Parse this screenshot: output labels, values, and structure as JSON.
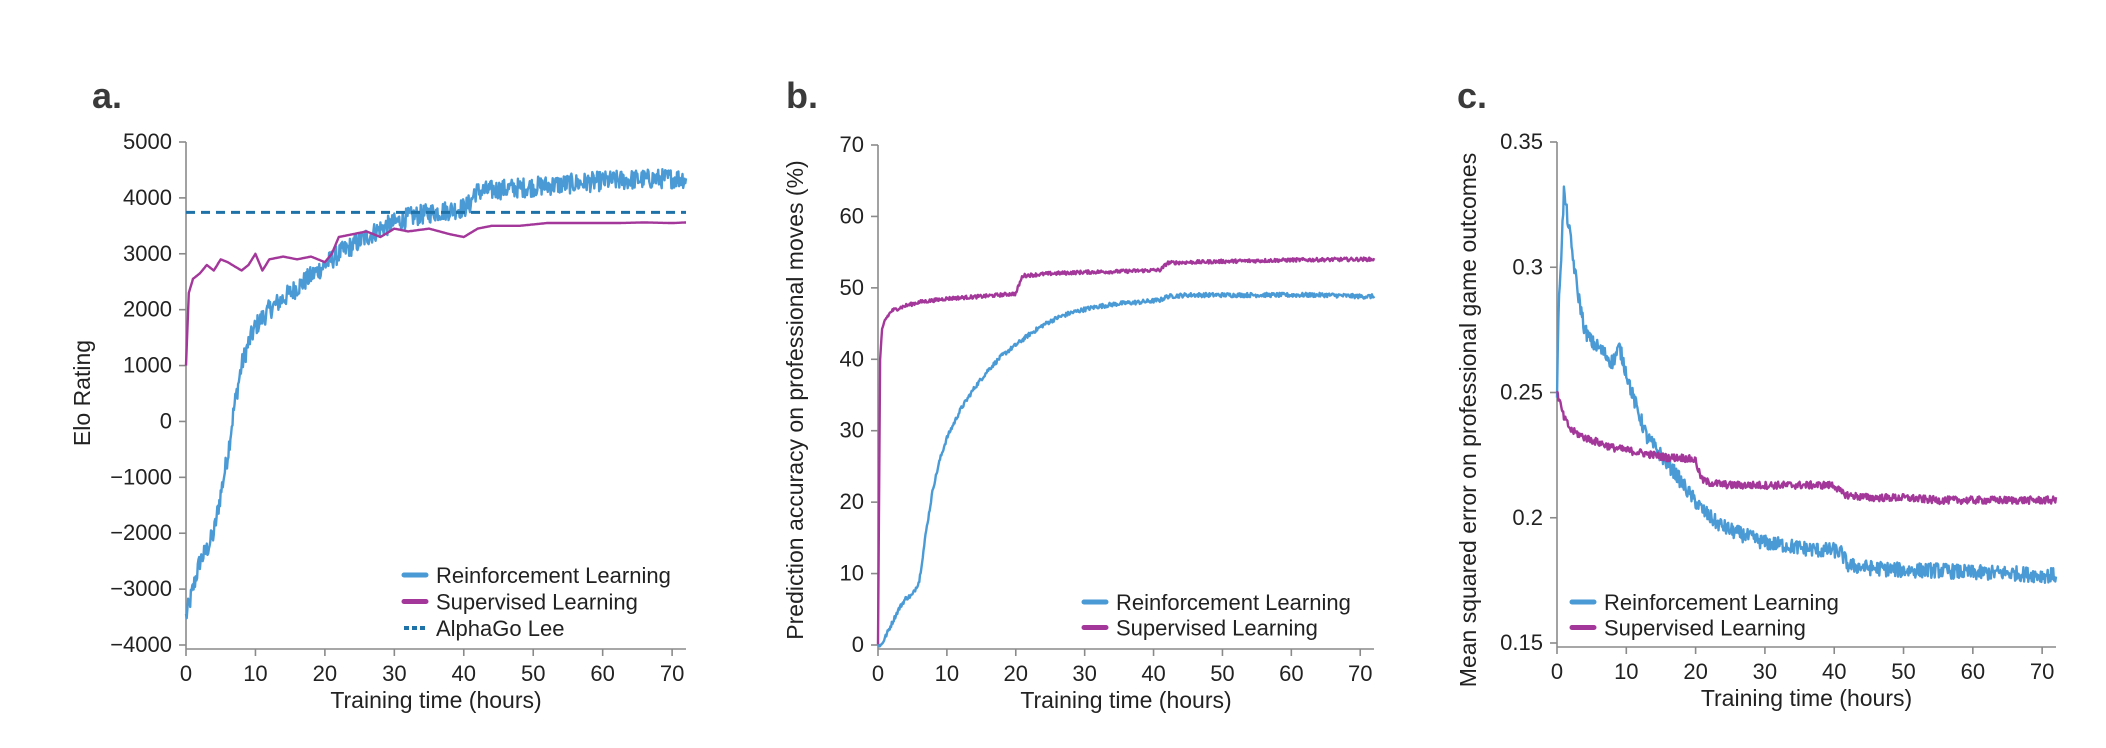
{
  "colors": {
    "rl": "#4a9ad6",
    "sl": "#a3379a",
    "alphago": "#1f72a8"
  },
  "chart_data": [
    {
      "panel": "a.",
      "type": "line",
      "xlabel": "Training time (hours)",
      "ylabel": "Elo Rating",
      "xlim": [
        0,
        72
      ],
      "ylim": [
        -4000,
        5000
      ],
      "xticks": [
        0,
        10,
        20,
        30,
        40,
        50,
        60,
        70
      ],
      "yticks": [
        -4000,
        -3000,
        -2000,
        -1000,
        0,
        1000,
        2000,
        3000,
        4000,
        5000
      ],
      "ytick_labels": [
        "−4000",
        "−3000",
        "−2000",
        "−1000",
        "0",
        "1000",
        "2000",
        "3000",
        "4000",
        "5000"
      ],
      "grid": false,
      "legend_position": "bottom-right",
      "series": [
        {
          "name": "Reinforcement Learning",
          "color_key": "rl",
          "style": "solid",
          "noise": 180,
          "x": [
            0,
            1,
            2,
            3,
            4,
            5,
            6,
            7,
            8,
            9,
            10,
            12,
            14,
            16,
            18,
            20,
            22,
            24,
            26,
            28,
            30,
            32,
            34,
            36,
            38,
            40,
            41,
            41.5,
            45,
            50,
            55,
            60,
            65,
            70,
            72
          ],
          "y": [
            -3500,
            -3000,
            -2500,
            -2300,
            -2000,
            -1300,
            -600,
            300,
            1000,
            1400,
            1700,
            2000,
            2200,
            2400,
            2600,
            2800,
            3000,
            3150,
            3300,
            3450,
            3550,
            3650,
            3700,
            3750,
            3780,
            3820,
            3900,
            4100,
            4150,
            4200,
            4250,
            4300,
            4330,
            4350,
            4350
          ]
        },
        {
          "name": "Supervised Learning",
          "color_key": "sl",
          "style": "solid",
          "noise": 0,
          "x": [
            0,
            0.4,
            1,
            2,
            3,
            4,
            5,
            6,
            8,
            9,
            10,
            11,
            12,
            14,
            16,
            18,
            20,
            21,
            22,
            24,
            26,
            28,
            30,
            32,
            35,
            38,
            40,
            42,
            44,
            48,
            52,
            58,
            62,
            66,
            70,
            72
          ],
          "y": [
            1000,
            2300,
            2550,
            2650,
            2800,
            2700,
            2900,
            2850,
            2700,
            2800,
            3000,
            2700,
            2900,
            2950,
            2900,
            2950,
            2850,
            3000,
            3300,
            3350,
            3400,
            3300,
            3450,
            3400,
            3450,
            3350,
            3300,
            3450,
            3500,
            3500,
            3550,
            3550,
            3550,
            3560,
            3550,
            3560
          ]
        },
        {
          "name": "AlphaGo Lee",
          "color_key": "alphago",
          "style": "dashed",
          "noise": 0,
          "x": [
            0,
            72
          ],
          "y": [
            3740,
            3740
          ]
        }
      ]
    },
    {
      "panel": "b.",
      "type": "line",
      "xlabel": "Training time (hours)",
      "ylabel": "Prediction accuracy on professional moves (%)",
      "xlim": [
        0,
        72
      ],
      "ylim": [
        0,
        70
      ],
      "xticks": [
        0,
        10,
        20,
        30,
        40,
        50,
        60,
        70
      ],
      "yticks": [
        0,
        10,
        20,
        30,
        40,
        50,
        60,
        70
      ],
      "grid": false,
      "legend_position": "bottom-right",
      "series": [
        {
          "name": "Reinforcement Learning",
          "color_key": "rl",
          "style": "solid",
          "noise": 0.3,
          "x": [
            0,
            0.5,
            1,
            2,
            3,
            4,
            5,
            6,
            7,
            8,
            9,
            10,
            12,
            14,
            16,
            18,
            20,
            22,
            24,
            26,
            28,
            30,
            32,
            35,
            38,
            41,
            42,
            45,
            50,
            55,
            60,
            65,
            70,
            72
          ],
          "y": [
            0,
            0,
            1,
            3,
            5,
            6.5,
            7,
            9,
            16,
            22,
            26,
            29,
            33,
            36,
            38.5,
            40.5,
            42,
            43.5,
            44.8,
            45.8,
            46.5,
            47,
            47.4,
            47.8,
            48,
            48.3,
            48.8,
            49,
            49,
            49,
            49,
            49,
            48.8,
            48.8
          ]
        },
        {
          "name": "Supervised Learning",
          "color_key": "sl",
          "style": "solid",
          "noise": 0.25,
          "x": [
            0,
            0.15,
            0.3,
            0.6,
            1,
            2,
            4,
            6,
            10,
            15,
            20,
            20.5,
            21,
            25,
            30,
            35,
            41,
            42,
            50,
            60,
            70,
            72
          ],
          "y": [
            0,
            20,
            40,
            44,
            45.5,
            46.8,
            47.5,
            48,
            48.5,
            48.8,
            49.2,
            50.5,
            51.7,
            52,
            52.2,
            52.3,
            52.5,
            53.5,
            53.7,
            53.9,
            54,
            54
          ]
        }
      ]
    },
    {
      "panel": "c.",
      "type": "line",
      "xlabel": "Training time (hours)",
      "ylabel": "Mean squared error on professional game outcomes",
      "xlim": [
        0,
        72
      ],
      "ylim": [
        0.15,
        0.35
      ],
      "xticks": [
        0,
        10,
        20,
        30,
        40,
        50,
        60,
        70
      ],
      "yticks": [
        0.15,
        0.2,
        0.25,
        0.3,
        0.35
      ],
      "ytick_labels": [
        "0.15",
        "0.2",
        "0.25",
        "0.3",
        "0.35"
      ],
      "grid": false,
      "legend_position": "bottom-left",
      "series": [
        {
          "name": "Reinforcement Learning",
          "color_key": "rl",
          "style": "solid",
          "noise": 0.003,
          "x": [
            0,
            0.3,
            0.7,
            1,
            1.5,
            2,
            3,
            4,
            5,
            6,
            7,
            8,
            9,
            10,
            11,
            12,
            13,
            15,
            17,
            19,
            21,
            23,
            25,
            28,
            30,
            33,
            35,
            38,
            40,
            41,
            42,
            45,
            50,
            55,
            60,
            65,
            70,
            72
          ],
          "y": [
            0.25,
            0.29,
            0.31,
            0.33,
            0.32,
            0.31,
            0.29,
            0.275,
            0.27,
            0.268,
            0.265,
            0.262,
            0.268,
            0.258,
            0.248,
            0.24,
            0.232,
            0.225,
            0.218,
            0.21,
            0.203,
            0.198,
            0.195,
            0.192,
            0.19,
            0.189,
            0.188,
            0.187,
            0.187,
            0.186,
            0.181,
            0.18,
            0.179,
            0.179,
            0.178,
            0.178,
            0.177,
            0.177
          ]
        },
        {
          "name": "Supervised Learning",
          "color_key": "sl",
          "style": "solid",
          "noise": 0.0015,
          "x": [
            0,
            0.5,
            1,
            2,
            4,
            6,
            8,
            10,
            12,
            14,
            16,
            18,
            20,
            20.5,
            21,
            22,
            25,
            30,
            35,
            40,
            41,
            42,
            45,
            50,
            55,
            60,
            65,
            70,
            72
          ],
          "y": [
            0.25,
            0.245,
            0.24,
            0.235,
            0.232,
            0.23,
            0.228,
            0.227,
            0.226,
            0.225,
            0.224,
            0.224,
            0.223,
            0.218,
            0.215,
            0.214,
            0.213,
            0.213,
            0.213,
            0.213,
            0.21,
            0.209,
            0.208,
            0.208,
            0.207,
            0.207,
            0.207,
            0.207,
            0.207
          ]
        }
      ]
    }
  ]
}
